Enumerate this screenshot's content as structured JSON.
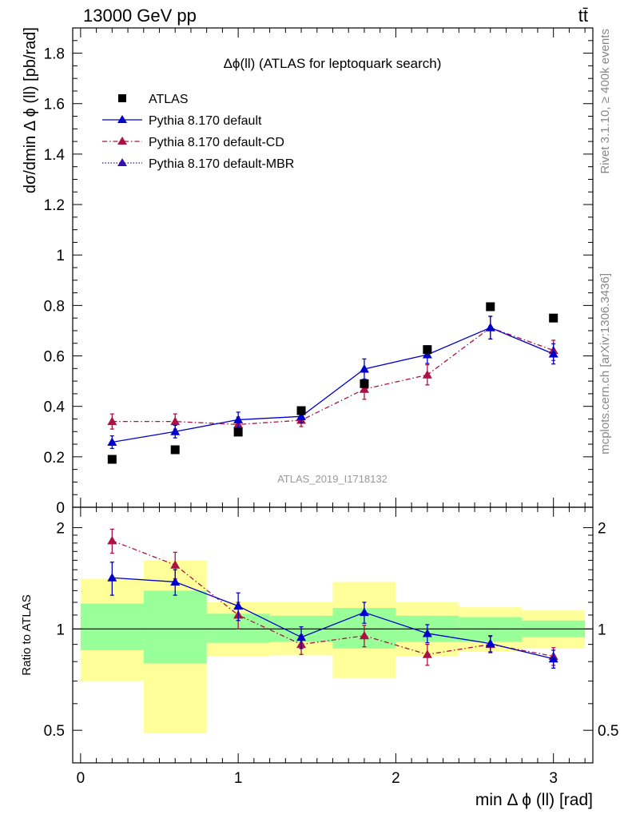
{
  "header": {
    "left": "13000 GeV pp",
    "right": "tt̄"
  },
  "side_labels": {
    "rivet": "Rivet 3.1.10, ≥ 400k events",
    "mcplots": "mcplots.cern.ch [arXiv:1306.3436]"
  },
  "chart_data": [
    {
      "type": "scatter",
      "title": "Δϕ(ll) (ATLAS for leptoquark search)",
      "xlabel": "min Δ ϕ (ll) [rad]",
      "ylabel": "dσ/dmin Δ ϕ (ll) [pb/rad]",
      "xlim": [
        -0.05,
        3.25
      ],
      "ylim": [
        0,
        1.9
      ],
      "yticks": [
        "0",
        "0.2",
        "0.4",
        "0.6",
        "0.8",
        "1",
        "1.2",
        "1.4",
        "1.6",
        "1.8"
      ],
      "watermark": "ATLAS_2019_I1718132",
      "legend_position": "top-left",
      "series": [
        {
          "name": "ATLAS",
          "color": "#000000",
          "marker": "square",
          "x": [
            0.2,
            0.6,
            1.0,
            1.4,
            1.8,
            2.2,
            2.6,
            3.0
          ],
          "y": [
            0.19,
            0.228,
            0.298,
            0.383,
            0.49,
            0.625,
            0.795,
            0.75
          ]
        },
        {
          "name": "Pythia 8.170 default",
          "color": "#0000cc",
          "marker": "triangle",
          "line": "solid",
          "x": [
            0.2,
            0.6,
            1.0,
            1.4,
            1.8,
            2.2,
            2.6,
            3.0
          ],
          "y": [
            0.258,
            0.3,
            0.347,
            0.36,
            0.548,
            0.605,
            0.712,
            0.608
          ],
          "err": [
            0.025,
            0.025,
            0.03,
            0.025,
            0.04,
            0.035,
            0.045,
            0.04
          ]
        },
        {
          "name": "Pythia 8.170 default-CD",
          "color": "#aa1144",
          "marker": "triangle",
          "line": "dashdot",
          "x": [
            0.2,
            0.6,
            1.0,
            1.4,
            1.8,
            2.2,
            2.6,
            3.0
          ],
          "y": [
            0.34,
            0.34,
            0.328,
            0.345,
            0.468,
            0.525,
            0.712,
            0.622
          ],
          "err": [
            0.03,
            0.03,
            0.03,
            0.025,
            0.04,
            0.04,
            0.045,
            0.04
          ]
        },
        {
          "name": "Pythia 8.170 default-MBR",
          "color": "#3311aa",
          "marker": "triangle",
          "line": "dotted",
          "x": [],
          "y": []
        }
      ]
    },
    {
      "type": "scatter",
      "ylabel": "Ratio to ATLAS",
      "xlabel": "min Δ ϕ (ll) [rad]",
      "xlim": [
        -0.05,
        3.25
      ],
      "ylim": [
        0.4,
        2.3
      ],
      "yscale": "log",
      "yticks": [
        "0.5",
        "1",
        "2"
      ],
      "xticks": [
        "0",
        "1",
        "2",
        "3"
      ],
      "bands": {
        "bin_edges": [
          0,
          0.4,
          0.8,
          1.2,
          1.6,
          2.0,
          2.4,
          2.8,
          3.2
        ],
        "inner": [
          [
            0.865,
            1.19
          ],
          [
            0.79,
            1.3
          ],
          [
            0.91,
            1.11
          ],
          [
            0.915,
            1.095
          ],
          [
            0.875,
            1.155
          ],
          [
            0.915,
            1.095
          ],
          [
            0.915,
            1.085
          ],
          [
            0.945,
            1.06
          ]
        ],
        "outer": [
          [
            0.7,
            1.41
          ],
          [
            0.49,
            1.6
          ],
          [
            0.83,
            1.2
          ],
          [
            0.835,
            1.2
          ],
          [
            0.715,
            1.38
          ],
          [
            0.83,
            1.2
          ],
          [
            0.855,
            1.16
          ],
          [
            0.875,
            1.135
          ]
        ],
        "inner_color": "#99ff99",
        "outer_color": "#ffff99"
      },
      "series": [
        {
          "name": "Pythia 8.170 default",
          "color": "#0000cc",
          "x": [
            0.2,
            0.6,
            1.0,
            1.4,
            1.8,
            2.2,
            2.6,
            3.0
          ],
          "y": [
            1.42,
            1.38,
            1.17,
            0.945,
            1.12,
            0.97,
            0.905,
            0.815
          ],
          "err": [
            0.16,
            0.12,
            0.11,
            0.07,
            0.08,
            0.06,
            0.05,
            0.05
          ]
        },
        {
          "name": "Pythia 8.170 default-CD",
          "color": "#aa1144",
          "x": [
            0.2,
            0.6,
            1.0,
            1.4,
            1.8,
            2.2,
            2.6,
            3.0
          ],
          "y": [
            1.83,
            1.55,
            1.1,
            0.9,
            0.955,
            0.84,
            0.9,
            0.83
          ],
          "err": [
            0.15,
            0.14,
            0.1,
            0.06,
            0.07,
            0.06,
            0.05,
            0.05
          ]
        }
      ]
    }
  ]
}
